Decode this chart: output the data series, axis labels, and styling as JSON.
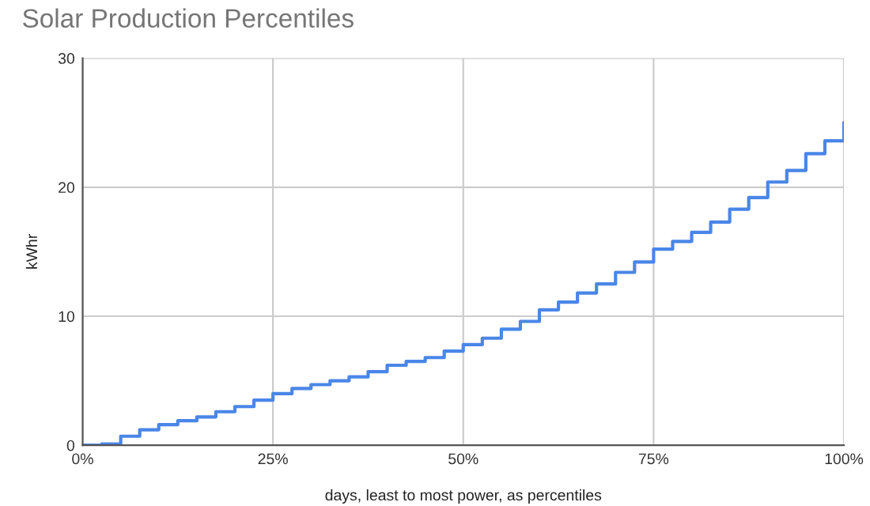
{
  "chart_data": {
    "type": "step",
    "title": "Solar Production Percentiles",
    "xlabel": "days, least to most power, as percentiles",
    "ylabel": "kWhr",
    "x": [
      0,
      2.5,
      5,
      7.5,
      10,
      12.5,
      15,
      17.5,
      20,
      22.5,
      25,
      27.5,
      30,
      32.5,
      35,
      37.5,
      40,
      42.5,
      45,
      47.5,
      50,
      52.5,
      55,
      57.5,
      60,
      62.5,
      65,
      67.5,
      70,
      72.5,
      75,
      77.5,
      80,
      82.5,
      85,
      87.5,
      90,
      92.5,
      95,
      97.5,
      100
    ],
    "series": [
      {
        "color": "#4a86e8",
        "values": [
          0,
          0.1,
          0.7,
          1.2,
          1.6,
          1.9,
          2.2,
          2.6,
          3.0,
          3.5,
          4.0,
          4.4,
          4.7,
          5.0,
          5.3,
          5.7,
          6.2,
          6.5,
          6.8,
          7.3,
          7.8,
          8.3,
          9.0,
          9.6,
          10.5,
          11.1,
          11.8,
          12.5,
          13.4,
          14.2,
          15.2,
          15.8,
          16.5,
          17.3,
          18.3,
          19.2,
          20.4,
          21.3,
          22.6,
          23.6,
          25.0
        ]
      }
    ],
    "xlim": [
      0,
      100
    ],
    "xticks": [
      {
        "value": 0,
        "label": "0%"
      },
      {
        "value": 25,
        "label": "25%"
      },
      {
        "value": 50,
        "label": "50%"
      },
      {
        "value": 75,
        "label": "75%"
      },
      {
        "value": 100,
        "label": "100%"
      }
    ],
    "ylim": [
      0,
      30
    ],
    "yticks": [
      0,
      10,
      20,
      30
    ],
    "grid": true,
    "legend": false
  }
}
